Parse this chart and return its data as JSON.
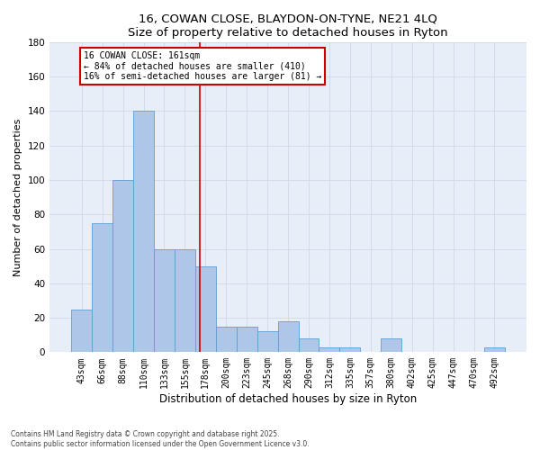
{
  "title1": "16, COWAN CLOSE, BLAYDON-ON-TYNE, NE21 4LQ",
  "title2": "Size of property relative to detached houses in Ryton",
  "xlabel": "Distribution of detached houses by size in Ryton",
  "ylabel": "Number of detached properties",
  "categories": [
    "43sqm",
    "66sqm",
    "88sqm",
    "110sqm",
    "133sqm",
    "155sqm",
    "178sqm",
    "200sqm",
    "223sqm",
    "245sqm",
    "268sqm",
    "290sqm",
    "312sqm",
    "335sqm",
    "357sqm",
    "380sqm",
    "402sqm",
    "425sqm",
    "447sqm",
    "470sqm",
    "492sqm"
  ],
  "values": [
    25,
    75,
    100,
    140,
    60,
    60,
    50,
    15,
    15,
    12,
    18,
    8,
    3,
    3,
    0,
    8,
    0,
    0,
    0,
    0,
    3
  ],
  "bar_color": "#aec6e8",
  "bar_edge_color": "#5a9fd4",
  "bar_width": 1.0,
  "vline_x": 5.72,
  "vline_color": "#cc0000",
  "vline_label": "16 COWAN CLOSE: 161sqm",
  "annotation_line1": "← 84% of detached houses are smaller (410)",
  "annotation_line2": "16% of semi-detached houses are larger (81) →",
  "annotation_box_color": "#cc0000",
  "ylim": [
    0,
    180
  ],
  "yticks": [
    0,
    20,
    40,
    60,
    80,
    100,
    120,
    140,
    160,
    180
  ],
  "grid_color": "#d0d8e8",
  "bg_color": "#e8eef8",
  "footer1": "Contains HM Land Registry data © Crown copyright and database right 2025.",
  "footer2": "Contains public sector information licensed under the Open Government Licence v3.0."
}
